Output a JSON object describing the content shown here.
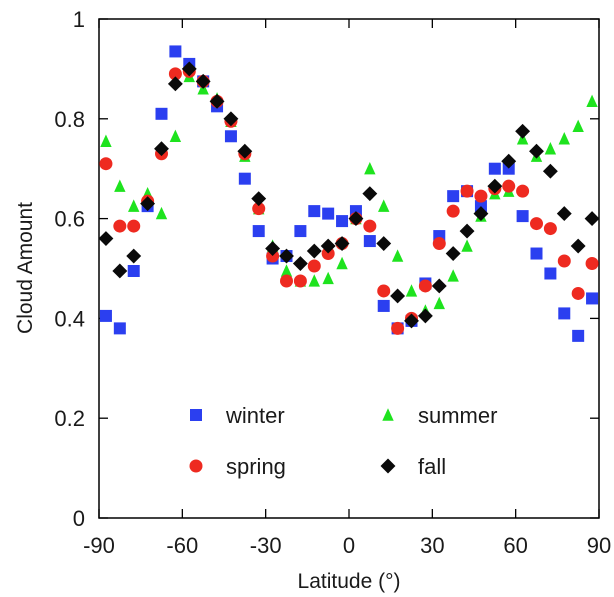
{
  "chart_data": {
    "type": "scatter",
    "title": "",
    "xlabel": "Latitude (°)",
    "ylabel": "Cloud Amount",
    "xlim": [
      -90,
      90
    ],
    "ylim": [
      0,
      1
    ],
    "xticks": [
      -90,
      -60,
      -30,
      0,
      30,
      60,
      90
    ],
    "xtick_labels": [
      "-90",
      "-60",
      "-30",
      "0",
      "30",
      "60",
      "90"
    ],
    "yticks": [
      0,
      0.2,
      0.4,
      0.6,
      0.8,
      1
    ],
    "ytick_labels": [
      "0",
      "0.2",
      "0.4",
      "0.6",
      "0.8",
      "1"
    ],
    "grid": false,
    "legend_position": "lower-center, inside plot",
    "x": [
      -87.5,
      -82.5,
      -77.5,
      -72.5,
      -67.5,
      -62.5,
      -57.5,
      -52.5,
      -47.5,
      -42.5,
      -37.5,
      -32.5,
      -27.5,
      -22.5,
      -17.5,
      -12.5,
      -7.5,
      -2.5,
      2.5,
      7.5,
      12.5,
      17.5,
      22.5,
      27.5,
      32.5,
      37.5,
      42.5,
      47.5,
      52.5,
      57.5,
      62.5,
      67.5,
      72.5,
      77.5,
      82.5,
      87.5
    ],
    "series": [
      {
        "name": "winter",
        "marker": "square",
        "color": "#2b3ff0",
        "values": [
          0.405,
          0.38,
          0.495,
          0.625,
          0.81,
          0.935,
          0.91,
          0.875,
          0.825,
          0.765,
          0.68,
          0.575,
          0.52,
          0.525,
          0.575,
          0.615,
          0.61,
          0.595,
          0.615,
          0.555,
          0.425,
          0.38,
          0.395,
          0.47,
          0.565,
          0.645,
          0.655,
          0.625,
          0.7,
          0.7,
          0.605,
          0.53,
          0.49,
          0.41,
          0.365,
          0.44
        ]
      },
      {
        "name": "summer",
        "marker": "triangle",
        "color": "#1ee31e",
        "values": [
          0.755,
          0.665,
          0.625,
          0.65,
          0.61,
          0.765,
          0.885,
          0.86,
          0.84,
          0.795,
          0.725,
          0.62,
          0.545,
          0.495,
          0.475,
          0.475,
          0.48,
          0.51,
          0.6,
          0.7,
          0.625,
          0.525,
          0.455,
          0.415,
          0.43,
          0.485,
          0.545,
          0.605,
          0.65,
          0.655,
          0.76,
          0.725,
          0.74,
          0.76,
          0.785,
          0.835
        ]
      },
      {
        "name": "spring",
        "marker": "circle",
        "color": "#ee2a20",
        "values": [
          0.71,
          0.585,
          0.585,
          0.635,
          0.73,
          0.89,
          0.895,
          0.875,
          0.835,
          0.795,
          0.73,
          0.62,
          0.525,
          0.475,
          0.475,
          0.505,
          0.53,
          0.55,
          0.6,
          0.585,
          0.455,
          0.38,
          0.4,
          0.465,
          0.55,
          0.615,
          0.655,
          0.645,
          0.66,
          0.665,
          0.655,
          0.59,
          0.58,
          0.515,
          0.45,
          0.51
        ]
      },
      {
        "name": "fall",
        "marker": "diamond",
        "color": "#0a0a0a",
        "values": [
          0.56,
          0.495,
          0.525,
          0.63,
          0.74,
          0.87,
          0.9,
          0.875,
          0.835,
          0.8,
          0.735,
          0.64,
          0.54,
          0.525,
          0.51,
          0.535,
          0.545,
          0.55,
          0.6,
          0.65,
          0.55,
          0.445,
          0.395,
          0.405,
          0.465,
          0.53,
          0.575,
          0.61,
          0.665,
          0.715,
          0.775,
          0.735,
          0.695,
          0.61,
          0.545,
          0.6
        ]
      }
    ],
    "legend": [
      {
        "label": "winter",
        "marker": "square",
        "color": "#2b3ff0"
      },
      {
        "label": "summer",
        "marker": "triangle",
        "color": "#1ee31e"
      },
      {
        "label": "spring",
        "marker": "circle",
        "color": "#ee2a20"
      },
      {
        "label": "fall",
        "marker": "diamond",
        "color": "#0a0a0a"
      }
    ]
  }
}
